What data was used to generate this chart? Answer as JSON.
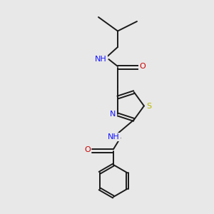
{
  "bg_color": "#e8e8e8",
  "bond_color": "#1a1a1a",
  "lw": 1.4,
  "atom_colors": {
    "N": "#1414ff",
    "O": "#cc0000",
    "S": "#b8b800",
    "C": "#1a1a1a"
  },
  "fs": 8.0,
  "dpi": 100,
  "xlim": [
    0,
    10
  ],
  "ylim": [
    0,
    10
  ]
}
